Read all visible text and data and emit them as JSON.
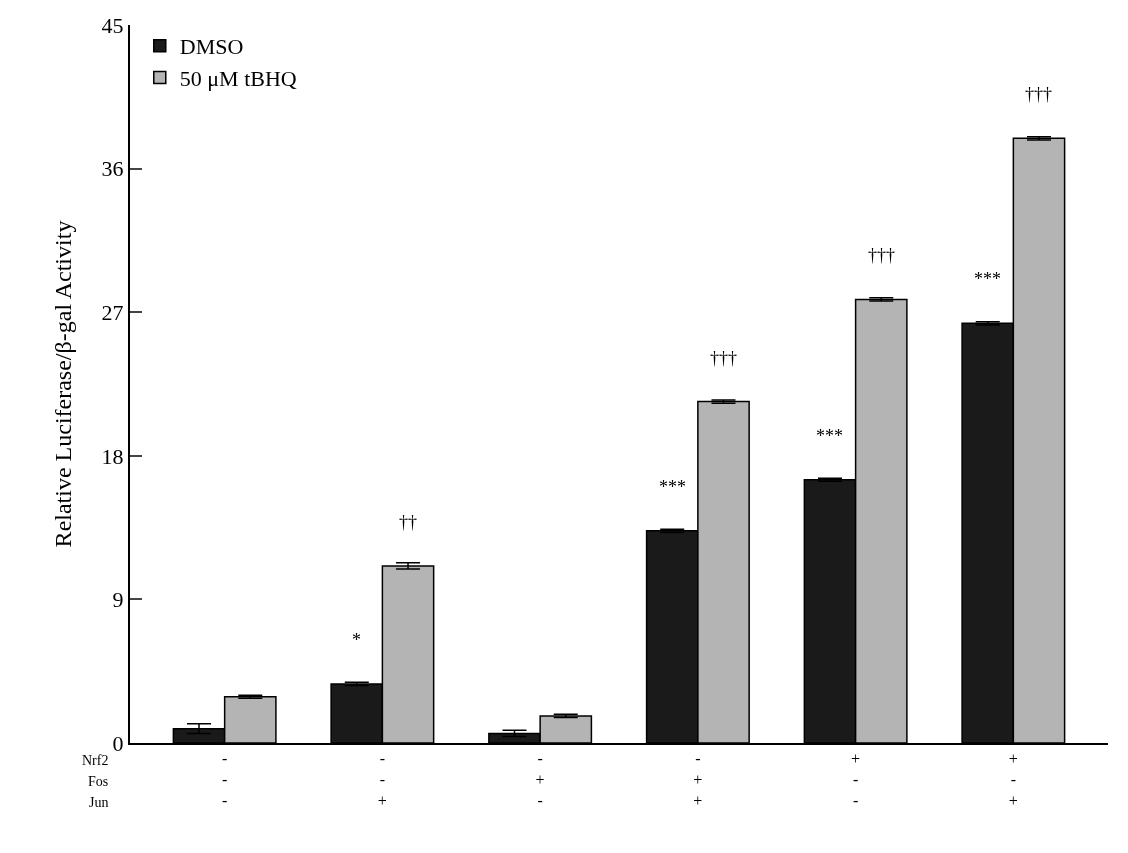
{
  "chart_data": {
    "type": "bar",
    "ylabel": "Relative Luciferase/β-gal Activity",
    "categories": [
      "-\n-\n-",
      "-\n-\n+",
      "-\n+\n-",
      "-\n+\n+",
      "+\n-\n-",
      "+\n-\n+"
    ],
    "series": [
      {
        "name": "DMSO",
        "color": "#1a1a1a",
        "values": [
          0.9,
          3.7,
          0.6,
          13.3,
          16.5,
          26.3
        ],
        "errors": [
          0.3,
          0.1,
          0.2,
          0.1,
          0.1,
          0.1
        ]
      },
      {
        "name": "50 μM tBHQ",
        "color": "#b4b4b4",
        "values": [
          2.9,
          11.1,
          1.7,
          21.4,
          27.8,
          37.9
        ],
        "errors": [
          0.1,
          0.2,
          0.1,
          0.1,
          0.1,
          0.1
        ]
      }
    ],
    "ylim": [
      0,
      45
    ],
    "yticks": [
      0,
      9,
      18,
      27,
      36,
      45
    ],
    "grid": false,
    "legend": "top left",
    "annotations": [
      "Nrf2",
      "Fos",
      "Jun",
      {
        "text": "*",
        "x": "-\n-\n+",
        "y": 3.7
      },
      {
        "text": "††",
        "x": "-\n-\n+",
        "y": 11.1
      },
      {
        "text": "***",
        "x": "-\n+\n+",
        "y": 13.3
      },
      {
        "text": "†††",
        "x": "-\n+\n+",
        "y": 21.4
      },
      {
        "text": "***",
        "x": "+\n-\n-",
        "y": 16.5
      },
      {
        "text": "†††",
        "x": "+\n-\n-",
        "y": 27.8
      },
      {
        "text": "***",
        "x": "+\n-\n+",
        "y": 26.3
      },
      {
        "text": "†††",
        "x": "+\n-\n+",
        "y": 37.9
      }
    ]
  }
}
